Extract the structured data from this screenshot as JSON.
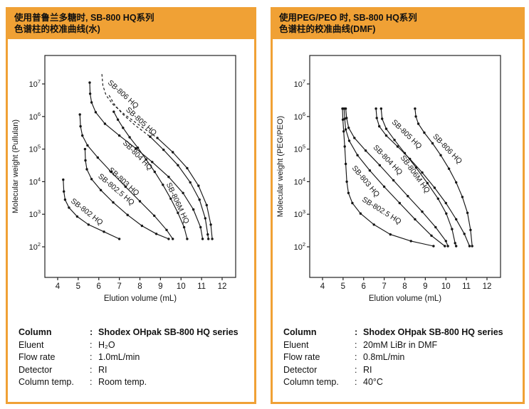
{
  "page": {
    "accent_color": "#F0A135",
    "chart_line_color": "#151515",
    "frame_color": "#222222"
  },
  "panels": [
    {
      "header_line1": "使用普鲁兰多糖时, SB-800 HQ系列",
      "header_line2": "色谱柱的校准曲线(水)",
      "info": {
        "rows": [
          {
            "label": "Column",
            "colon": ":",
            "value": "Shodex OHpak SB-800 HQ series"
          },
          {
            "label": "Eluent",
            "colon": ":",
            "value": "H₂O"
          },
          {
            "label": "Flow rate",
            "colon": ":",
            "value": "1.0mL/min"
          },
          {
            "label": "Detector",
            "colon": ":",
            "value": "RI"
          },
          {
            "label": "Column temp.",
            "colon": ":",
            "value": "Room temp."
          }
        ]
      }
    },
    {
      "header_line1": "使用PEG/PEO 时, SB-800 HQ系列",
      "header_line2": "色谱柱的校准曲线(DMF)",
      "info": {
        "rows": [
          {
            "label": "Column",
            "colon": ":",
            "value": "Shodex OHpak SB-800 HQ series"
          },
          {
            "label": "Eluent",
            "colon": ":",
            "value": "20mM LiBr in DMF"
          },
          {
            "label": "Flow rate",
            "colon": ":",
            "value": "0.8mL/min"
          },
          {
            "label": "Detector",
            "colon": ":",
            "value": "RI"
          },
          {
            "label": "Column temp.",
            "colon": ":",
            "value": "40°C"
          }
        ]
      }
    }
  ],
  "chart_data": [
    {
      "type": "line",
      "title": "SB-800 HQ series calibration curves with Pullulan (water)",
      "xlabel": "Elution volume (mL)",
      "ylabel": "Molecular weight (Pullulan)",
      "x_ticks": [
        4,
        5,
        6,
        7,
        8,
        9,
        10,
        11,
        12
      ],
      "xlim": [
        3.4,
        12.65
      ],
      "y_scale": "log",
      "y_tick_base": "10",
      "y_tick_exponents": [
        2,
        3,
        4,
        5,
        6,
        7
      ],
      "ylim_exponents": [
        1.06,
        7.87
      ],
      "grid": false,
      "legend": "labels-on-curves",
      "series": [
        {
          "name": "SB-802 HQ",
          "dashed_head": 0,
          "points": [
            [
              4.27,
              11500.0
            ],
            [
              4.3,
              5000.0
            ],
            [
              4.36,
              2800.0
            ],
            [
              4.55,
              1600.0
            ],
            [
              4.95,
              850.0
            ],
            [
              5.5,
              480.0
            ],
            [
              6.25,
              290.0
            ],
            [
              7.0,
              175.0
            ]
          ],
          "label": {
            "text": "SB-802 HQ",
            "x": 4.62,
            "y": 2400.0,
            "angle": 38
          }
        },
        {
          "name": "SB-802.5 HQ",
          "dashed_head": 0,
          "points": [
            [
              5.33,
              100000.0
            ],
            [
              5.35,
              45000.0
            ],
            [
              5.42,
              24000.0
            ],
            [
              5.65,
              12000.0
            ],
            [
              6.1,
              5500.0
            ],
            [
              6.7,
              2300.0
            ],
            [
              7.4,
              950.0
            ],
            [
              8.1,
              440.0
            ],
            [
              8.8,
              250.0
            ],
            [
              9.4,
              175.0
            ]
          ],
          "label": {
            "text": "SB-802.5 HQ",
            "x": 5.95,
            "y": 14000.0,
            "angle": 40
          }
        },
        {
          "name": "SB-803 HQ",
          "dashed_head": 0,
          "points": [
            [
              5.08,
              1150000.0
            ],
            [
              5.11,
              500000.0
            ],
            [
              5.2,
              260000.0
            ],
            [
              5.45,
              130000.0
            ],
            [
              5.95,
              55000.0
            ],
            [
              6.6,
              20000.0
            ],
            [
              7.3,
              7000.0
            ],
            [
              8.0,
              2500.0
            ],
            [
              8.7,
              900.0
            ],
            [
              9.3,
              330.0
            ],
            [
              9.6,
              175.0
            ]
          ],
          "label": {
            "text": "SB-803 HQ",
            "x": 6.45,
            "y": 22000.0,
            "angle": 42
          }
        },
        {
          "name": "SB-804 HQ",
          "dashed_head": 0,
          "points": [
            [
              5.56,
              11000000.0
            ],
            [
              5.58,
              5000000.0
            ],
            [
              5.65,
              2700000.0
            ],
            [
              5.85,
              1350000.0
            ],
            [
              6.3,
              600000.0
            ],
            [
              7.0,
              260000.0
            ],
            [
              7.8,
              105000.0
            ],
            [
              8.6,
              40000.0
            ],
            [
              9.4,
              14000.0
            ],
            [
              10.1,
              4500.0
            ],
            [
              10.6,
              1400.0
            ],
            [
              10.95,
              400.0
            ],
            [
              11.05,
              175.0
            ]
          ],
          "label": {
            "text": "SB-804 HQ",
            "x": 7.15,
            "y": 150000.0,
            "angle": 45
          }
        },
        {
          "name": "SB-805 HQ",
          "dashed_head": 4,
          "points": [
            [
              6.5,
              4500000.0
            ],
            [
              6.75,
              2400000.0
            ],
            [
              7.15,
              1200000.0
            ],
            [
              7.75,
              550000.0
            ],
            [
              8.5,
              240000.0
            ],
            [
              9.15,
              95000.0
            ],
            [
              9.85,
              32000.0
            ],
            [
              10.45,
              9500.0
            ],
            [
              10.9,
              2800.0
            ],
            [
              11.18,
              750.0
            ],
            [
              11.3,
              240.0
            ],
            [
              11.33,
              175.0
            ]
          ],
          "label": {
            "text": "SB-805 HQ",
            "x": 7.3,
            "y": 1550000.0,
            "angle": 42
          }
        },
        {
          "name": "SB-806 HQ",
          "dashed_head": 6,
          "points": [
            [
              6.15,
              20000000.0
            ],
            [
              6.2,
              9000000.0
            ],
            [
              6.35,
              4500000.0
            ],
            [
              6.7,
              2300000.0
            ],
            [
              7.3,
              1100000.0
            ],
            [
              8.05,
              500000.0
            ],
            [
              8.85,
              220000.0
            ],
            [
              9.6,
              80000.0
            ],
            [
              10.3,
              26000.0
            ],
            [
              10.85,
              7500.0
            ],
            [
              11.25,
              1900.0
            ],
            [
              11.45,
              480.0
            ],
            [
              11.52,
              175.0
            ]
          ],
          "label": {
            "text": "SB-806 HQ",
            "x": 6.42,
            "y": 10500000.0,
            "angle": 42
          }
        },
        {
          "name": "SB-806M HQ",
          "dashed_head": 0,
          "points": [
            [
              6.73,
              1400000.0
            ],
            [
              6.93,
              800000.0
            ],
            [
              7.18,
              450000.0
            ],
            [
              7.5,
              230000.0
            ],
            [
              7.9,
              110000.0
            ],
            [
              8.3,
              48000.0
            ],
            [
              8.72,
              20000.0
            ],
            [
              9.12,
              8000.0
            ],
            [
              9.5,
              3000.0
            ],
            [
              9.85,
              1100.0
            ],
            [
              10.15,
              400.0
            ],
            [
              10.3,
              175.0
            ]
          ],
          "label": {
            "text": "SB-806M HQ",
            "x": 9.28,
            "y": 8500.0,
            "angle": 65
          }
        }
      ]
    },
    {
      "type": "line",
      "title": "SB-800 HQ series calibration curves with PEG/PEO (DMF)",
      "xlabel": "Elution volume (mL)",
      "ylabel": "Molecular weight (PEG/PEO)",
      "x_ticks": [
        4,
        5,
        6,
        7,
        8,
        9,
        10,
        11,
        12
      ],
      "xlim": [
        3.4,
        12.65
      ],
      "y_scale": "log",
      "y_tick_base": "10",
      "y_tick_exponents": [
        2,
        3,
        4,
        5,
        6,
        7
      ],
      "ylim_exponents": [
        1.06,
        7.87
      ],
      "grid": false,
      "legend": "labels-on-curves",
      "series": [
        {
          "name": "SB-802.5 HQ",
          "dashed_head": 0,
          "points": [
            [
              4.97,
              1750000.0
            ],
            [
              4.99,
              800000.0
            ],
            [
              5.03,
              350000.0
            ],
            [
              5.08,
              120000.0
            ],
            [
              5.13,
              35000.0
            ],
            [
              5.18,
              10000.0
            ],
            [
              5.26,
              4500.0
            ],
            [
              5.45,
              2200.0
            ],
            [
              5.85,
              1050.0
            ],
            [
              6.5,
              480.0
            ],
            [
              7.3,
              240.0
            ],
            [
              8.3,
              150.0
            ],
            [
              9.4,
              105.0
            ]
          ],
          "label": {
            "text": "SB-802.5 HQ",
            "x": 5.9,
            "y": 2600.0,
            "angle": 32
          }
        },
        {
          "name": "SB-803 HQ",
          "dashed_head": 0,
          "points": [
            [
              5.05,
              1750000.0
            ],
            [
              5.08,
              850000.0
            ],
            [
              5.13,
              400000.0
            ],
            [
              5.3,
              180000.0
            ],
            [
              5.7,
              65000.0
            ],
            [
              6.3,
              22000.0
            ],
            [
              7.0,
              7000.0
            ],
            [
              7.75,
              2200.0
            ],
            [
              8.5,
              700.0
            ],
            [
              9.3,
              220.0
            ],
            [
              9.95,
              105.0
            ]
          ],
          "label": {
            "text": "SB-803 HQ",
            "x": 5.42,
            "y": 26000.0,
            "angle": 50
          }
        },
        {
          "name": "SB-804 HQ",
          "dashed_head": 0,
          "points": [
            [
              5.13,
              1750000.0
            ],
            [
              5.17,
              900000.0
            ],
            [
              5.27,
              450000.0
            ],
            [
              5.55,
              220000.0
            ],
            [
              6.1,
              90000.0
            ],
            [
              6.78,
              32000.0
            ],
            [
              7.45,
              11000.0
            ],
            [
              8.15,
              3600.0
            ],
            [
              8.85,
              1200.0
            ],
            [
              9.5,
              400.0
            ],
            [
              10.0,
              150.0
            ],
            [
              10.1,
              105.0
            ]
          ],
          "label": {
            "text": "SB-804 HQ",
            "x": 6.45,
            "y": 110000.0,
            "angle": 46
          }
        },
        {
          "name": "SB-805 HQ",
          "dashed_head": 0,
          "points": [
            [
              6.6,
              1750000.0
            ],
            [
              6.64,
              900000.0
            ],
            [
              6.76,
              500000.0
            ],
            [
              7.1,
              260000.0
            ],
            [
              7.65,
              120000.0
            ],
            [
              8.25,
              50000.0
            ],
            [
              8.85,
              19000.0
            ],
            [
              9.45,
              6500.0
            ],
            [
              10.0,
              2200.0
            ],
            [
              10.5,
              700.0
            ],
            [
              10.9,
              250.0
            ],
            [
              11.15,
              105.0
            ]
          ],
          "label": {
            "text": "SB-805 HQ",
            "x": 7.35,
            "y": 650000.0,
            "angle": 44
          }
        },
        {
          "name": "SB-806M HQ",
          "dashed_head": 0,
          "points": [
            [
              6.85,
              1750000.0
            ],
            [
              6.9,
              850000.0
            ],
            [
              7.1,
              420000.0
            ],
            [
              7.5,
              190000.0
            ],
            [
              8.0,
              75000.0
            ],
            [
              8.55,
              27000.0
            ],
            [
              9.1,
              9000.0
            ],
            [
              9.62,
              3000.0
            ],
            [
              10.02,
              1050.0
            ],
            [
              10.3,
              350.0
            ],
            [
              10.45,
              130.0
            ],
            [
              10.5,
              105.0
            ]
          ],
          "label": {
            "text": "SB-806M HQ",
            "x": 7.78,
            "y": 55000.0,
            "angle": 54
          }
        },
        {
          "name": "SB-806 HQ",
          "dashed_head": 0,
          "points": [
            [
              8.5,
              1750000.0
            ],
            [
              8.54,
              1000000.0
            ],
            [
              8.66,
              600000.0
            ],
            [
              8.95,
              320000.0
            ],
            [
              9.35,
              150000.0
            ],
            [
              9.75,
              65000.0
            ],
            [
              10.15,
              25000.0
            ],
            [
              10.5,
              9500.0
            ],
            [
              10.8,
              3400.0
            ],
            [
              11.05,
              1100.0
            ],
            [
              11.2,
              330.0
            ],
            [
              11.28,
              105.0
            ]
          ],
          "label": {
            "text": "SB-806 HQ",
            "x": 9.35,
            "y": 240000.0,
            "angle": 46
          }
        }
      ]
    }
  ]
}
